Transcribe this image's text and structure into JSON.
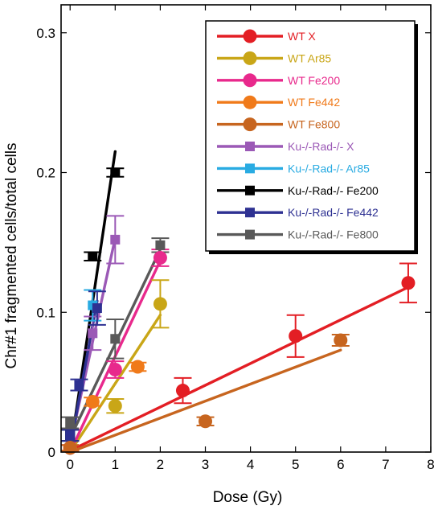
{
  "chart_data": {
    "type": "scatter",
    "title": "",
    "xlabel": "Dose (Gy)",
    "ylabel": "Chr#1 fragmented cells/total cells",
    "xlim": [
      -0.2,
      8
    ],
    "ylim": [
      0,
      0.32
    ],
    "xticks": [
      0,
      1,
      2,
      3,
      4,
      5,
      6,
      7,
      8
    ],
    "xtick_labels": [
      "0",
      "1",
      "2",
      "3",
      "4",
      "5",
      "6",
      "7",
      "8"
    ],
    "yticks": [
      0,
      0.1,
      0.2,
      0.3
    ],
    "ytick_labels": [
      "0",
      "0.1",
      "0.2",
      "0.3"
    ],
    "grid": false,
    "legend_position": "top-right",
    "series": [
      {
        "name": "WT X",
        "marker": "circle",
        "color": "#e31e24",
        "points": [
          {
            "x": 0,
            "y": 0.003,
            "err": 0.002
          },
          {
            "x": 2.5,
            "y": 0.044,
            "err": 0.009
          },
          {
            "x": 5,
            "y": 0.083,
            "err": 0.015
          },
          {
            "x": 7.5,
            "y": 0.121,
            "err": 0.014
          }
        ],
        "fit": [
          [
            0,
            0.001
          ],
          [
            7.5,
            0.118
          ]
        ]
      },
      {
        "name": "WT Ar85",
        "marker": "circle",
        "color": "#c9a617",
        "points": [
          {
            "x": 0,
            "y": 0.003,
            "err": 0.002
          },
          {
            "x": 1,
            "y": 0.033,
            "err": 0.005
          },
          {
            "x": 2,
            "y": 0.106,
            "err": 0.017
          }
        ],
        "fit": [
          [
            0,
            0
          ],
          [
            2,
            0.098
          ]
        ]
      },
      {
        "name": "WT Fe200",
        "marker": "circle",
        "color": "#e8298c",
        "points": [
          {
            "x": 0,
            "y": 0.003,
            "err": 0.002
          },
          {
            "x": 1,
            "y": 0.059,
            "err": 0.006
          },
          {
            "x": 2,
            "y": 0.139,
            "err": 0.006
          }
        ],
        "fit": [
          [
            0,
            0
          ],
          [
            2,
            0.137
          ]
        ]
      },
      {
        "name": "WT Fe442",
        "marker": "circle",
        "color": "#f07a1a",
        "points": [
          {
            "x": 0,
            "y": 0.003,
            "err": 0.002
          },
          {
            "x": 0.5,
            "y": 0.036,
            "err": 0.003
          },
          {
            "x": 1.5,
            "y": 0.061,
            "err": 0.003
          }
        ],
        "fit": []
      },
      {
        "name": "WT Fe800",
        "marker": "circle",
        "color": "#c7651f",
        "points": [
          {
            "x": 0,
            "y": 0.003,
            "err": 0.002
          },
          {
            "x": 3,
            "y": 0.022,
            "err": 0.003
          },
          {
            "x": 6,
            "y": 0.08,
            "err": 0.004
          }
        ],
        "fit": [
          [
            0,
            0
          ],
          [
            6,
            0.073
          ]
        ]
      },
      {
        "name": "Ku-/-Rad-/- X",
        "marker": "square",
        "color": "#9b59b6",
        "points": [
          {
            "x": 0,
            "y": 0.012,
            "err": 0.004
          },
          {
            "x": 0.5,
            "y": 0.085,
            "err": 0.012
          },
          {
            "x": 1,
            "y": 0.152,
            "err": 0.017
          }
        ],
        "fit": [
          [
            0,
            0.005
          ],
          [
            1,
            0.153
          ]
        ]
      },
      {
        "name": "Ku-/-Rad-/- Ar85",
        "marker": "square",
        "color": "#29abe2",
        "points": [
          {
            "x": 0,
            "y": 0.012,
            "err": 0.004
          },
          {
            "x": 0.5,
            "y": 0.105,
            "err": 0.011
          }
        ],
        "fit": []
      },
      {
        "name": "Ku-/-Rad-/- Fe200",
        "marker": "square",
        "color": "#000000",
        "points": [
          {
            "x": 0,
            "y": 0.012,
            "err": 0.004
          },
          {
            "x": 0.5,
            "y": 0.14,
            "err": 0.003
          },
          {
            "x": 1,
            "y": 0.2,
            "err": 0.003
          }
        ],
        "fit": [
          [
            0,
            0
          ],
          [
            1,
            0.215
          ]
        ]
      },
      {
        "name": "Ku-/-Rad-/- Fe442",
        "marker": "square",
        "color": "#2e3192",
        "points": [
          {
            "x": 0,
            "y": 0.012,
            "err": 0.004
          },
          {
            "x": 0.2,
            "y": 0.048,
            "err": 0.004
          },
          {
            "x": 0.6,
            "y": 0.103,
            "err": 0.012
          }
        ],
        "fit": [
          [
            0,
            0.003
          ],
          [
            0.6,
            0.108
          ]
        ]
      },
      {
        "name": "Ku-/-Rad-/- Fe800",
        "marker": "square",
        "color": "#595959",
        "points": [
          {
            "x": 0,
            "y": 0.021,
            "err": 0.004
          },
          {
            "x": 1,
            "y": 0.081,
            "err": 0.014
          },
          {
            "x": 2,
            "y": 0.148,
            "err": 0.005
          }
        ],
        "fit": [
          [
            0,
            0.01
          ],
          [
            2,
            0.145
          ]
        ]
      }
    ]
  }
}
